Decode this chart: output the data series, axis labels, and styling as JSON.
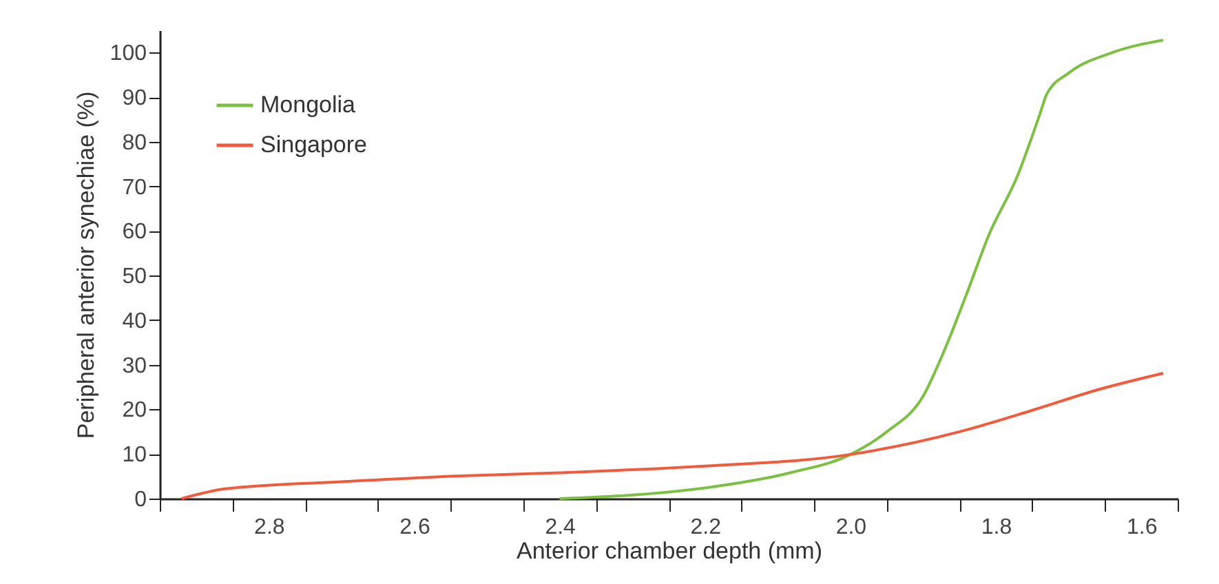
{
  "chart_data": {
    "type": "line",
    "xlabel": "Anterior chamber depth (mm)",
    "ylabel": "Peripheral anterior synechiae (%)",
    "xlim": [
      2.95,
      1.55
    ],
    "xticks": [
      {
        "value": 2.95,
        "label": null
      },
      2.8,
      {
        "value": 2.85,
        "label": null
      },
      {
        "value": 2.75,
        "label": null
      },
      2.6,
      {
        "value": 2.65,
        "label": null
      },
      {
        "value": 2.55,
        "label": null
      },
      2.4,
      {
        "value": 2.45,
        "label": null
      },
      {
        "value": 2.35,
        "label": null
      },
      2.2,
      {
        "value": 2.25,
        "label": null
      },
      {
        "value": 2.15,
        "label": null
      },
      {
        "value": 2.0,
        "label": "2.0"
      },
      {
        "value": 2.05,
        "label": null
      },
      {
        "value": 1.95,
        "label": null
      },
      1.8,
      {
        "value": 1.85,
        "label": null
      },
      {
        "value": 1.75,
        "label": null
      },
      1.6,
      {
        "value": 1.65,
        "label": null
      },
      {
        "value": 1.55,
        "label": null
      }
    ],
    "ylim": [
      0,
      105
    ],
    "yticks": [
      0,
      10,
      20,
      30,
      40,
      50,
      60,
      70,
      80,
      90,
      100
    ],
    "legend": "top left",
    "grid": false,
    "series": [
      {
        "name": "Mongolia",
        "color": "#7cc043",
        "x": [
          2.4,
          2.3,
          2.2,
          2.08,
          2.0,
          1.95,
          1.9,
          1.87,
          1.84,
          1.81,
          1.77,
          1.74,
          1.73,
          1.7,
          1.64,
          1.57
        ],
        "values": [
          0,
          0.8,
          2.4,
          5.9,
          9.9,
          15,
          23,
          33.6,
          46,
          59,
          72.5,
          86,
          90.7,
          95.4,
          100,
          102.8
        ]
      },
      {
        "name": "Singapore",
        "color": "#f15a3a",
        "x": [
          2.92,
          2.86,
          2.7,
          2.55,
          2.4,
          2.2,
          2.0,
          1.85,
          1.75,
          1.66,
          1.57
        ],
        "values": [
          0,
          2.2,
          3.8,
          5.0,
          5.8,
          7.3,
          9.9,
          15,
          19.8,
          24.4,
          28.1
        ]
      }
    ]
  }
}
